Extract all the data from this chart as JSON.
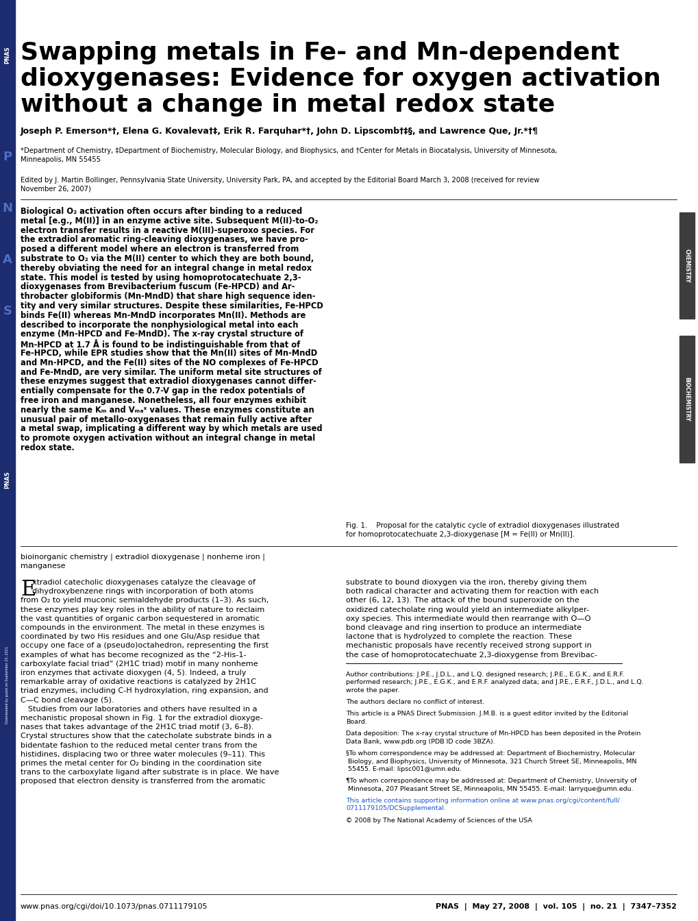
{
  "title_line1": "Swapping metals in Fe- and Mn-dependent",
  "title_line2": "dioxygenases: Evidence for oxygen activation",
  "title_line3": "without a change in metal redox state",
  "authors": "Joseph P. Emerson*†, Elena G. Kovaleva†‡, Erik R. Farquhar*†, John D. Lipscomb†‡§, and Lawrence Que, Jr.*†¶",
  "affiliations_line1": "*Department of Chemistry, ‡Department of Biochemistry, Molecular Biology, and Biophysics, and †Center for Metals in Biocatalysis, University of Minnesota,",
  "affiliations_line2": "Minneapolis, MN 55455",
  "edited_line1": "Edited by J. Martin Bollinger, Pennsylvania State University, University Park, PA, and accepted by the Editorial Board March 3, 2008 (received for review",
  "edited_line2": "November 26, 2007)",
  "abstract_lines": [
    "Biological O₂ activation often occurs after binding to a reduced",
    "metal [e.g., M(II)] in an enzyme active site. Subsequent M(II)-to-O₂",
    "electron transfer results in a reactive M(III)-superoxo species. For",
    "the extradiol aromatic ring-cleaving dioxygenases, we have pro-",
    "posed a different model where an electron is transferred from",
    "substrate to O₂ via the M(II) center to which they are both bound,",
    "thereby obviating the need for an integral change in metal redox",
    "state. This model is tested by using homoprotocatechuate 2,3-",
    "dioxygenases from Brevibacterium fuscum (Fe-HPCD) and Ar-",
    "throbacter globiformis (Mn-MndD) that share high sequence iden-",
    "tity and very similar structures. Despite these similarities, Fe-HPCD",
    "binds Fe(II) whereas Mn-MndD incorporates Mn(II). Methods are",
    "described to incorporate the nonphysiological metal into each",
    "enzyme (Mn-HPCD and Fe-MndD). The x-ray crystal structure of",
    "Mn-HPCD at 1.7 Å is found to be indistinguishable from that of",
    "Fe-HPCD, while EPR studies show that the Mn(II) sites of Mn-MndD",
    "and Mn-HPCD, and the Fe(II) sites of the NO complexes of Fe-HPCD",
    "and Fe-MndD, are very similar. The uniform metal site structures of",
    "these enzymes suggest that extradiol dioxygenases cannot differ-",
    "entially compensate for the 0.7-V gap in the redox potentials of",
    "free iron and manganese. Nonetheless, all four enzymes exhibit",
    "nearly the same Kₘ and Vₘₐˣ values. These enzymes constitute an",
    "unusual pair of metallo-oxygenases that remain fully active after",
    "a metal swap, implicating a different way by which metals are used",
    "to promote oxygen activation without an integral change in metal",
    "redox state."
  ],
  "fig_caption_line1": "Fig. 1.    Proposal for the catalytic cycle of extradiol dioxygenases illustrated",
  "fig_caption_line2": "for homoprotocatechuate 2,3-dioxygenase [M = Fe(II) or Mn(II)].",
  "keywords_line1": "bioinorganic chemistry | extradiol dioxygenase | nonheme iron |",
  "keywords_line2": "manganese",
  "body_col1_lines": [
    "Extradiol catecholic dioxygenases catalyze the cleavage of",
    "dihydroxybenzene rings with incorporation of both atoms",
    "from O₂ to yield muconic semialdehyde products (1–3). As such,",
    "these enzymes play key roles in the ability of nature to reclaim",
    "the vast quantities of organic carbon sequestered in aromatic",
    "compounds in the environment. The metal in these enzymes is",
    "coordinated by two His residues and one Glu/Asp residue that",
    "occupy one face of a (pseudo)octahedron, representing the first",
    "examples of what has become recognized as the “2-His-1-",
    "carboxylate facial triad” (2H1C triad) motif in many nonheme",
    "iron enzymes that activate dioxygen (4, 5). Indeed, a truly",
    "remarkable array of oxidative reactions is catalyzed by 2H1C",
    "triad enzymes, including C-H hydroxylation, ring expansion, and",
    "C—C bond cleavage (5).",
    "   Studies from our laboratories and others have resulted in a",
    "mechanistic proposal shown in Fig. 1 for the extradiol dioxyge-",
    "nases that takes advantage of the 2H1C triad motif (3, 6–8).",
    "Crystal structures show that the catecholate substrate binds in a",
    "bidentate fashion to the reduced metal center trans from the",
    "histidines, displacing two or three water molecules (9–11). This",
    "primes the metal center for O₂ binding in the coordination site",
    "trans to the carboxylate ligand after substrate is in place. We have",
    "proposed that electron density is transferred from the aromatic"
  ],
  "body_col2_lines": [
    "substrate to bound dioxygen via the iron, thereby giving them",
    "both radical character and activating them for reaction with each",
    "other (6, 12, 13). The attack of the bound superoxide on the",
    "oxidized catecholate ring would yield an intermediate alkylper-",
    "oxy species. This intermediate would then rearrange with O—O",
    "bond cleavage and ring insertion to produce an intermediate",
    "lactone that is hydrolyzed to complete the reaction. These",
    "mechanistic proposals have recently received strong support in",
    "the case of homoprotocatechuate 2,3-dioxygense from Brevibac-"
  ],
  "footnote_lines": [
    "Author contributions: J.P.E., J.D.L., and L.Q. designed research; J.P.E., E.G.K., and E.R.F.",
    "performed research; J.P.E., E.G.K., and E.R.F. analyzed data; and J.P.E., E.R.F., J.D.L., and L.Q.",
    "wrote the paper.",
    "",
    "The authors declare no conflict of interest.",
    "",
    "This article is a PNAS Direct Submission. J.M.B. is a guest editor invited by the Editorial",
    "Board.",
    "",
    "Data deposition: The x-ray crystal structure of Mn-HPCD has been deposited in the Protein",
    "Data Bank, www.pdb.org (PDB ID code 3BZA).",
    "",
    "§To whom correspondence may be addressed at: Department of Biochemistry, Molecular",
    " Biology, and Biophysics, University of Minnesota, 321 Church Street SE, Minneapolis, MN",
    " 55455. E-mail: lipsc001@umn.edu.",
    "",
    "¶To whom correspondence may be addressed at: Department of Chemistry, University of",
    " Minnesota, 207 Pleasant Street SE, Minneapolis, MN 55455. E-mail: larryque@umn.edu.",
    "",
    "This article contains supporting information online at www.pnas.org/cgi/content/full/",
    "0711179105/DCSupplemental.",
    "",
    "© 2008 by The National Academy of Sciences of the USA"
  ],
  "footer_left": "www.pnas.org/cgi/doi/10.1073/pnas.0711179105",
  "footer_right": "PNAS  |  May 27, 2008  |  vol. 105  |  no. 21  |  7347–7352",
  "sidebar_color": "#1c2c6e",
  "bg_color": "#ffffff",
  "chem_bar_color": "#3d3d3d",
  "biochem_bar_color": "#3d3d3d"
}
